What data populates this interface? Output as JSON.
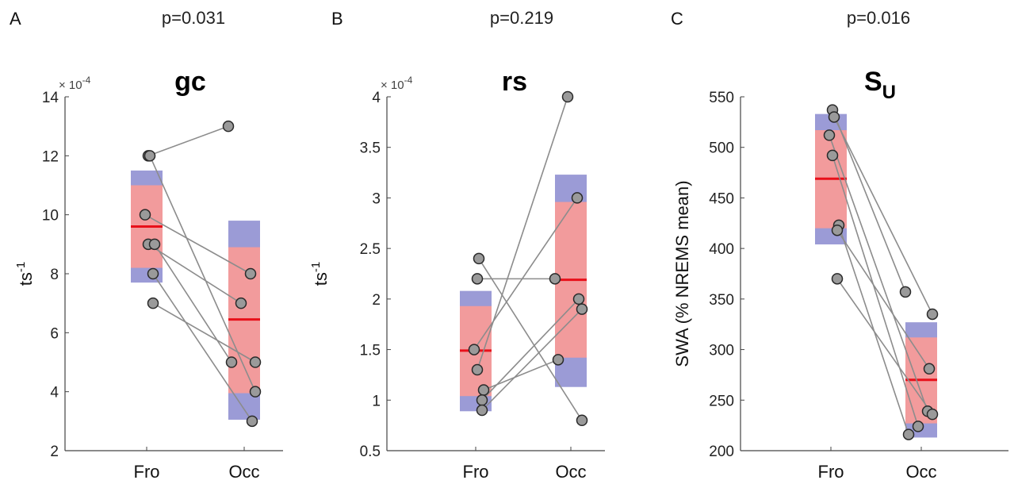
{
  "chart_data": [
    {
      "type": "scatter",
      "letter": "A",
      "pvalue": "p=0.031",
      "title": "gc",
      "title_sub": "",
      "ylabel_main": "ts",
      "ylabel_sup": "-1",
      "multiplier": "× 10",
      "multiplier_exp": "-4",
      "ylim": [
        2,
        14
      ],
      "yticks": [
        2,
        4,
        6,
        8,
        10,
        12,
        14
      ],
      "ytick_labels": [
        "2",
        "4",
        "6",
        "8",
        "10",
        "12",
        "14"
      ],
      "categories": [
        "Fro",
        "Occ"
      ],
      "boxes": [
        {
          "category": "Fro",
          "mean": 9.6,
          "ci_low": 8.2,
          "ci_high": 11.0,
          "sd_low": 7.7,
          "sd_high": 11.5
        },
        {
          "category": "Occ",
          "mean": 6.45,
          "ci_low": 3.95,
          "ci_high": 8.9,
          "sd_low": 3.05,
          "sd_high": 9.8
        }
      ],
      "pairs": [
        [
          12.0,
          13.0
        ],
        [
          12.0,
          4.0
        ],
        [
          10.0,
          8.0
        ],
        [
          9.0,
          7.0
        ],
        [
          9.0,
          5.0
        ],
        [
          8.0,
          3.0
        ],
        [
          7.0,
          5.0
        ]
      ]
    },
    {
      "type": "scatter",
      "letter": "B",
      "pvalue": "p=0.219",
      "title": "rs",
      "title_sub": "",
      "ylabel_main": "ts",
      "ylabel_sup": "-1",
      "multiplier": "× 10",
      "multiplier_exp": "-4",
      "ylim": [
        0.5,
        4
      ],
      "yticks": [
        0.5,
        1,
        1.5,
        2,
        2.5,
        3,
        3.5,
        4
      ],
      "ytick_labels": [
        "0.5",
        "1",
        "1.5",
        "2",
        "2.5",
        "3",
        "3.5",
        "4"
      ],
      "categories": [
        "Fro",
        "Occ"
      ],
      "boxes": [
        {
          "category": "Fro",
          "mean": 1.49,
          "ci_low": 1.04,
          "ci_high": 1.93,
          "sd_low": 0.89,
          "sd_high": 2.08
        },
        {
          "category": "Occ",
          "mean": 2.19,
          "ci_low": 1.42,
          "ci_high": 2.96,
          "sd_low": 1.13,
          "sd_high": 3.23
        }
      ],
      "pairs": [
        [
          2.2,
          2.2
        ],
        [
          2.4,
          0.8
        ],
        [
          1.5,
          3.0
        ],
        [
          1.3,
          4.0
        ],
        [
          1.1,
          1.4
        ],
        [
          1.0,
          2.0
        ],
        [
          0.9,
          1.9
        ]
      ]
    },
    {
      "type": "scatter",
      "letter": "C",
      "pvalue": "p=0.016",
      "title": "S",
      "title_sub": "U",
      "ylabel_main": "SWA (% NREMS mean)",
      "ylabel_sup": "",
      "multiplier": "",
      "multiplier_exp": "",
      "ylim": [
        200,
        550
      ],
      "yticks": [
        200,
        250,
        300,
        350,
        400,
        450,
        500,
        550
      ],
      "ytick_labels": [
        "200",
        "250",
        "300",
        "350",
        "400",
        "450",
        "500",
        "550"
      ],
      "categories": [
        "Fro",
        "Occ"
      ],
      "boxes": [
        {
          "category": "Fro",
          "mean": 469,
          "ci_low": 420,
          "ci_high": 517,
          "sd_low": 404,
          "sd_high": 533
        },
        {
          "category": "Occ",
          "mean": 270,
          "ci_low": 227,
          "ci_high": 312,
          "sd_low": 213,
          "sd_high": 327
        }
      ],
      "pairs": [
        [
          537,
          357
        ],
        [
          530,
          335
        ],
        [
          512,
          239
        ],
        [
          492,
          224
        ],
        [
          423,
          216
        ],
        [
          418,
          281
        ],
        [
          370,
          236
        ]
      ]
    }
  ],
  "colors": {
    "ci_fill": "#f29b9c",
    "sd_fill": "#9b9bd6",
    "mean_line": "#e8101a",
    "point_fill": "#9a9a9a",
    "point_stroke": "#2a2a2a",
    "pair_line": "#8c8c8c"
  }
}
